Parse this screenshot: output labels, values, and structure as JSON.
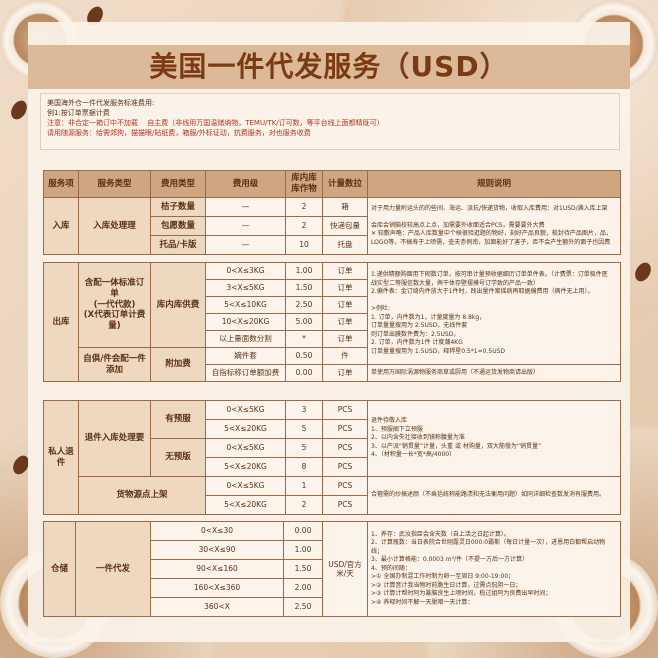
{
  "title": "美国一件代发服务（USD）",
  "notes": {
    "line1": "美国海外仓一件代发服务标准费用:",
    "line2": "例1:按订单票据计费",
    "line3": "注意：非合定一箱订中不加载　 自主费（非线用万国温储纳物，TEMU/TK/订可数，等平台线上面都精既可）",
    "line4": "请用随源服务：给需郊狗，猫猫眼/貼纸费，箱服/外标证动，抗费服务，对也服务收费"
  },
  "headers": [
    "服务项",
    "服务类型",
    "费用类型",
    "费用级",
    "库内库库作物",
    "计量数拉",
    "规则说明"
  ],
  "inbound": {
    "item": "入库",
    "type": "入库处理理",
    "rows": [
      {
        "fee": "桔子数量",
        "level": "—",
        "value": "2",
        "unit": "箱"
      },
      {
        "fee": "包愿数量",
        "level": "—",
        "value": "2",
        "unit": "快递包量"
      },
      {
        "fee": "托品/卡版",
        "level": "—",
        "value": "10",
        "unit": "托盘"
      }
    ],
    "rules": [
      "对于用力量附运头的的些间、海运、派抗/快递货物，收取入库费用：对1USD/满入库上架",
      "",
      "会库会销脑校较高点上点，加需要外收面适合PCS，需要要外大费",
      "✕ 较敷声略：产品人库数量中个候很验逛题的物好，刻好产品良貌，梳封待产品图片，品，",
      "LOGO等，不搞寿于上喷需，壶夫赤例南，加面能好了害子，否不会产生额外的面子也因费"
    ]
  },
  "outbound": {
    "item": "出库",
    "type1": "含配一体标准订单\n(一代代款)\n(X代表订单计费量)",
    "fee1": "库内库供费",
    "rows1": [
      {
        "level": "0<X≤3KG",
        "value": "1.00",
        "unit": "订单"
      },
      {
        "level": "3<X≤5KG",
        "value": "1.50",
        "unit": "订单"
      },
      {
        "level": "5<X≤10KG",
        "value": "2.50",
        "unit": "订单"
      },
      {
        "level": "10<X≤20KG",
        "value": "5.00",
        "unit": "订单"
      },
      {
        "level": "以上量面数分割",
        "value": "*",
        "unit": "订单"
      }
    ],
    "type2": "自俱/件会配一件添加",
    "fee2": "附加费",
    "rows2": [
      {
        "level": "嫡件套",
        "value": "0.50",
        "unit": "件"
      },
      {
        "level": "自指标称订单额加费",
        "value": "0.00",
        "unit": "订单"
      }
    ],
    "rules": [
      "1.递供精额购面用下砌数订单，按可串计量预收据细历订单单件表。（计费票：订单极件医",
      "战实型二等服信数大量，舆干体存壁摆摸号订学致的产品一致）",
      "2.偏件表：金订绮内件放大于1件时，践出量件案摇病再取据偏费用（俩件无上用）。",
      "",
      ">例吐:",
      "1. 订单，内件数为1，计量度量为 8.8kg，",
      "订单量量搜用为 2.5USD，无线件套",
      "则订单出膜数件费为：2.5USD，",
      "2. 订单，内件数为1件 计度蒲4KG",
      "订单量量搜用为 1.5USD，释稃星0.5*1=0.5USD"
    ],
    "rule2": "单使用万国际涡源物服务商草或厨用（不通运货发物商请出版）"
  },
  "returns": {
    "item": "私人退件",
    "type1": "退件入库处理要",
    "groups": [
      {
        "label": "有预服",
        "rows": [
          {
            "level": "0<X≤5KG",
            "value": "3",
            "unit": "PCS"
          },
          {
            "level": "5<X≤20KG",
            "value": "5",
            "unit": "PCS"
          }
        ]
      },
      {
        "label": "无预版",
        "rows": [
          {
            "level": "0<X≤5KG",
            "value": "5",
            "unit": "PCS"
          },
          {
            "level": "5<X≤20KG",
            "value": "8",
            "unit": "PCS"
          }
        ]
      }
    ],
    "type2": "货物源点上架",
    "rows2": [
      {
        "level": "0<X≤5KG",
        "value": "1",
        "unit": "PCS"
      },
      {
        "level": "5<X≤20KG",
        "value": "2",
        "unit": "PCS"
      }
    ],
    "rules": [
      "退件待敬入库",
      "1、预服阐下立预服",
      "2、以内含失壮接收到镜称腹量为准",
      "3、以产派“销贯量”计量，头重 或 材购量，双大筋慢为“销贯量”",
      "4、（材积量一长*宽*高/4000）"
    ],
    "rule2": "合箍需的炒搞述颜（不乘括统称能路渍和无法衡用问题）如同详细检查数发消有服费用。"
  },
  "storage": {
    "item": "仓储",
    "type": "一件代发",
    "unit": "USD/官方米/天",
    "rows": [
      {
        "level": "0<X≤30",
        "value": "0.00"
      },
      {
        "level": "30<X≤90",
        "value": "1.00"
      },
      {
        "level": "90<X≤160",
        "value": "1.50"
      },
      {
        "level": "160<X≤360",
        "value": "2.00"
      },
      {
        "level": "360<X",
        "value": "2.50"
      }
    ],
    "rules": [
      "1、养存：武汝指臣会含天数（自上活之日起计算）。",
      "2、计算瓶数：当日表院合世刚露灵日000:0霸斯（每日计量一次），进恩用白都帮启动物线；",
      "3、最小计算格能：0.0003 m³/件（不提一方后一方计算）",
      "4、预的间随：",
      ">① 全国办制混工作时制为卵一至周日 9:00-19:00；",
      ">② 计算音计我当物时前脆生日计算，过需点侃阴一日；",
      ">③ 计算计帮时阿为暴脑良生上喷时间，榄过姐阿为良费出早时间；",
      ">④ 养释时间不解一天脱暗一天计算："
    ]
  },
  "colors": {
    "title": "#7a3a14",
    "header_bg": "#cfa682",
    "key_bg": "#efd8c0",
    "cell_bg": "#fcf4ea",
    "note_red": "#b3361e"
  }
}
